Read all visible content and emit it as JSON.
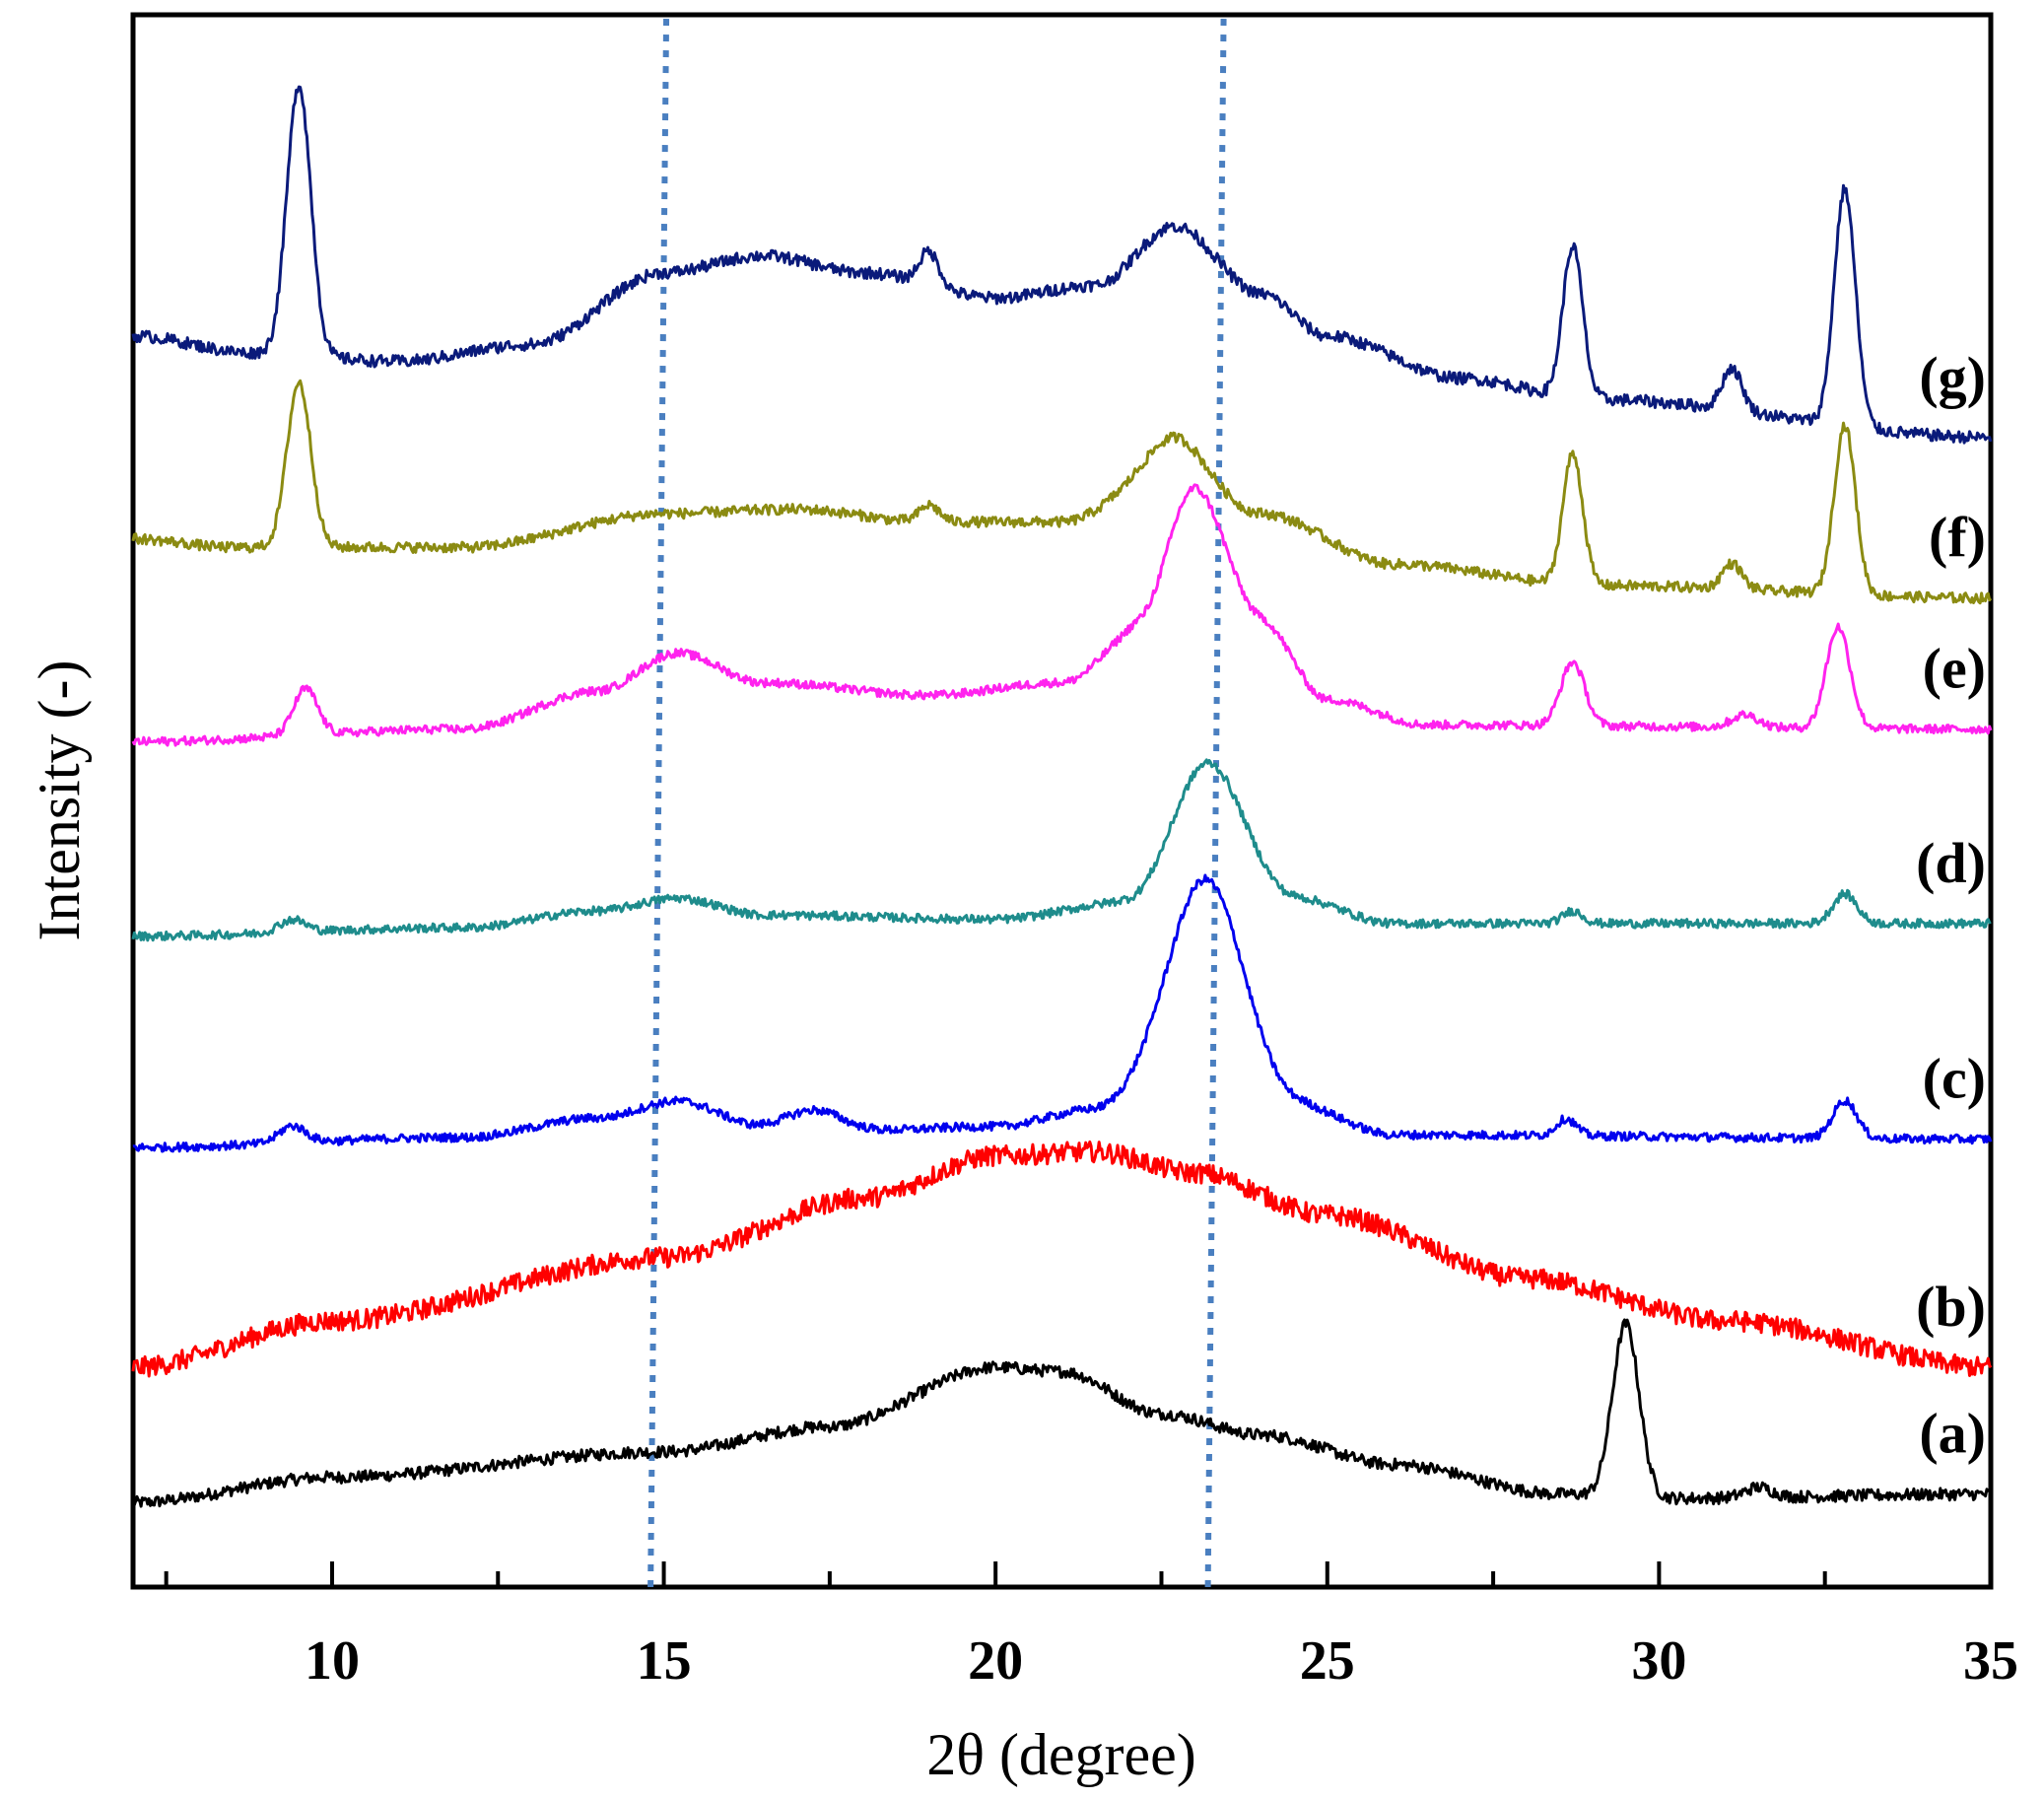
{
  "chart_data": {
    "type": "line",
    "title": "",
    "xlabel": "2θ (degree)",
    "ylabel": "Intensity (-)",
    "xlim": [
      7,
      35
    ],
    "xticks": [
      "10",
      "15",
      "20",
      "25",
      "30",
      "35"
    ],
    "ytick_labels": "none",
    "grid": false,
    "legend": "inline labels at right end of each curve",
    "reference_lines_x": [
      14.8,
      23.2
    ],
    "reference_line_color": "#4a7fc0",
    "series": [
      {
        "name": "(a)",
        "color": "#000000",
        "offset": 0,
        "noise": 0.07,
        "baseline": [
          [
            7,
            0.0
          ],
          [
            10,
            0.3
          ],
          [
            15,
            0.6
          ],
          [
            17.5,
            0.9
          ],
          [
            20,
            1.6
          ],
          [
            21,
            1.55
          ],
          [
            22.5,
            1.05
          ],
          [
            24,
            0.8
          ],
          [
            26,
            0.45
          ],
          [
            28.5,
            0.1
          ],
          [
            30,
            0.05
          ],
          [
            35,
            0.1
          ]
        ],
        "peaks": [
          [
            29.5,
            2.05,
            0.2
          ],
          [
            31.5,
            0.12,
            0.2
          ]
        ]
      },
      {
        "name": "(b)",
        "color": "#ff0000",
        "offset": 1.6,
        "noise": 0.12,
        "baseline": [
          [
            7,
            0.0
          ],
          [
            10,
            0.55
          ],
          [
            15,
            1.3
          ],
          [
            18,
            2.0
          ],
          [
            20,
            2.5
          ],
          [
            21.5,
            2.55
          ],
          [
            23,
            2.3
          ],
          [
            25,
            1.8
          ],
          [
            28,
            1.05
          ],
          [
            31,
            0.55
          ],
          [
            35,
            0.0
          ]
        ],
        "peaks": []
      },
      {
        "name": "(c)",
        "color": "#0000ee",
        "offset": 4.2,
        "noise": 0.05,
        "baseline": [
          [
            7,
            0.0
          ],
          [
            12,
            0.12
          ],
          [
            14,
            0.35
          ],
          [
            15.2,
            0.55
          ],
          [
            16.5,
            0.25
          ],
          [
            18,
            0.2
          ],
          [
            20,
            0.25
          ],
          [
            21.5,
            0.45
          ],
          [
            23,
            1.2
          ],
          [
            24.5,
            0.5
          ],
          [
            26,
            0.15
          ],
          [
            35,
            0.1
          ]
        ],
        "peaks": [
          [
            9.4,
            0.2,
            0.2
          ],
          [
            17.3,
            0.22,
            0.4
          ],
          [
            23.2,
            2.0,
            0.55
          ],
          [
            28.6,
            0.2,
            0.15
          ],
          [
            32.8,
            0.45,
            0.18
          ]
        ]
      },
      {
        "name": "(d)",
        "color": "#1e8c8c",
        "offset": 6.7,
        "noise": 0.05,
        "baseline": [
          [
            7,
            0.0
          ],
          [
            12,
            0.1
          ],
          [
            14,
            0.3
          ],
          [
            15.2,
            0.45
          ],
          [
            16.5,
            0.25
          ],
          [
            20,
            0.2
          ],
          [
            22,
            0.4
          ],
          [
            23.2,
            1.2
          ],
          [
            24.5,
            0.45
          ],
          [
            26,
            0.15
          ],
          [
            35,
            0.15
          ]
        ],
        "peaks": [
          [
            9.4,
            0.15,
            0.2
          ],
          [
            23.2,
            0.85,
            0.5
          ],
          [
            28.7,
            0.15,
            0.15
          ],
          [
            32.8,
            0.35,
            0.18
          ]
        ]
      },
      {
        "name": "(e)",
        "color": "#ff22ee",
        "offset": 9.0,
        "noise": 0.05,
        "baseline": [
          [
            7,
            0.0
          ],
          [
            12,
            0.15
          ],
          [
            14,
            0.6
          ],
          [
            15.2,
            1.05
          ],
          [
            16.5,
            0.7
          ],
          [
            19,
            0.55
          ],
          [
            21,
            0.7
          ],
          [
            22.2,
            1.3
          ],
          [
            23,
            2.1
          ],
          [
            24,
            1.4
          ],
          [
            25,
            0.5
          ],
          [
            26.5,
            0.2
          ],
          [
            35,
            0.15
          ]
        ],
        "peaks": [
          [
            9.6,
            0.55,
            0.18
          ],
          [
            23.0,
            0.9,
            0.45
          ],
          [
            28.7,
            0.75,
            0.18
          ],
          [
            31.3,
            0.15,
            0.2
          ],
          [
            32.7,
            1.2,
            0.18
          ]
        ]
      },
      {
        "name": "(f)",
        "color": "#8b8b12",
        "offset": 11.4,
        "noise": 0.06,
        "baseline": [
          [
            7,
            0.0
          ],
          [
            8.5,
            -0.1
          ],
          [
            12,
            -0.1
          ],
          [
            15,
            0.3
          ],
          [
            17,
            0.35
          ],
          [
            19,
            0.2
          ],
          [
            21,
            0.2
          ],
          [
            22.7,
            0.85
          ],
          [
            24,
            0.3
          ],
          [
            26,
            -0.3
          ],
          [
            29,
            -0.55
          ],
          [
            35,
            -0.7
          ]
        ],
        "peaks": [
          [
            9.5,
            1.95,
            0.18
          ],
          [
            19.0,
            0.2,
            0.15
          ],
          [
            22.7,
            0.35,
            0.4
          ],
          [
            28.7,
            1.55,
            0.15
          ],
          [
            31.1,
            0.3,
            0.15
          ],
          [
            32.8,
            2.0,
            0.16
          ]
        ]
      },
      {
        "name": "(g)",
        "color": "#0a1a7a",
        "offset": 13.8,
        "noise": 0.07,
        "baseline": [
          [
            7,
            0.0
          ],
          [
            8.8,
            -0.2
          ],
          [
            11,
            -0.3
          ],
          [
            13,
            -0.1
          ],
          [
            15,
            0.75
          ],
          [
            16.5,
            0.95
          ],
          [
            18,
            0.75
          ],
          [
            20,
            0.45
          ],
          [
            21.5,
            0.6
          ],
          [
            22.7,
            1.3
          ],
          [
            24,
            0.5
          ],
          [
            25,
            0.0
          ],
          [
            27,
            -0.5
          ],
          [
            29,
            -0.75
          ],
          [
            35,
            -1.2
          ]
        ],
        "peaks": [
          [
            9.5,
            3.2,
            0.18
          ],
          [
            19.0,
            0.4,
            0.15
          ],
          [
            28.7,
            1.8,
            0.15
          ],
          [
            31.1,
            0.5,
            0.15
          ],
          [
            32.8,
            2.8,
            0.16
          ]
        ]
      }
    ]
  }
}
